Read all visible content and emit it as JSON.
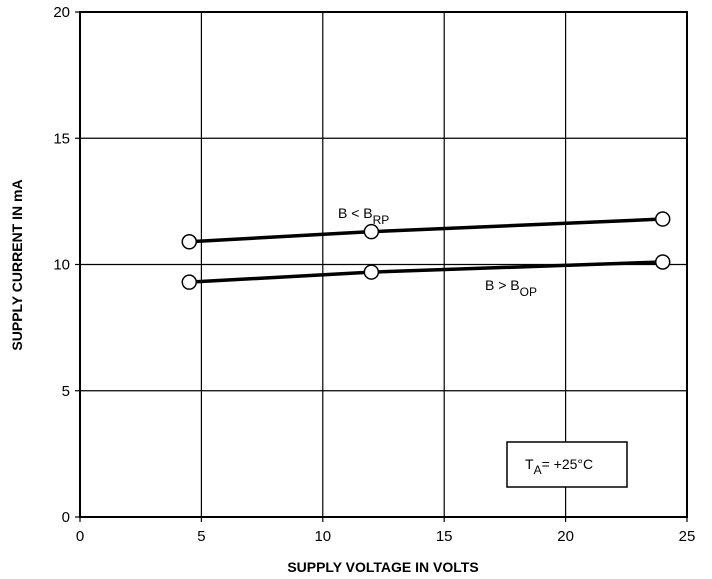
{
  "chart_data": {
    "type": "line",
    "title": "",
    "xlabel": "SUPPLY VOLTAGE IN VOLTS",
    "ylabel": "SUPPLY CURRENT IN mA",
    "xlim": [
      0,
      25
    ],
    "ylim": [
      0,
      20
    ],
    "xticks": [
      0,
      5,
      10,
      15,
      20,
      25
    ],
    "yticks": [
      0,
      5,
      10,
      15,
      20
    ],
    "grid": true,
    "series": [
      {
        "name": "B < B_RP",
        "label_main": "B < B",
        "label_sub": "RP",
        "x": [
          4.5,
          12,
          24
        ],
        "y": [
          10.9,
          11.3,
          11.8
        ]
      },
      {
        "name": "B > B_OP",
        "label_main": "B > B",
        "label_sub": "OP",
        "x": [
          4.5,
          12,
          24
        ],
        "y": [
          9.3,
          9.7,
          10.1
        ]
      }
    ],
    "annotation": {
      "main": "T",
      "sub": "A",
      "rest": "= +25°C"
    }
  }
}
